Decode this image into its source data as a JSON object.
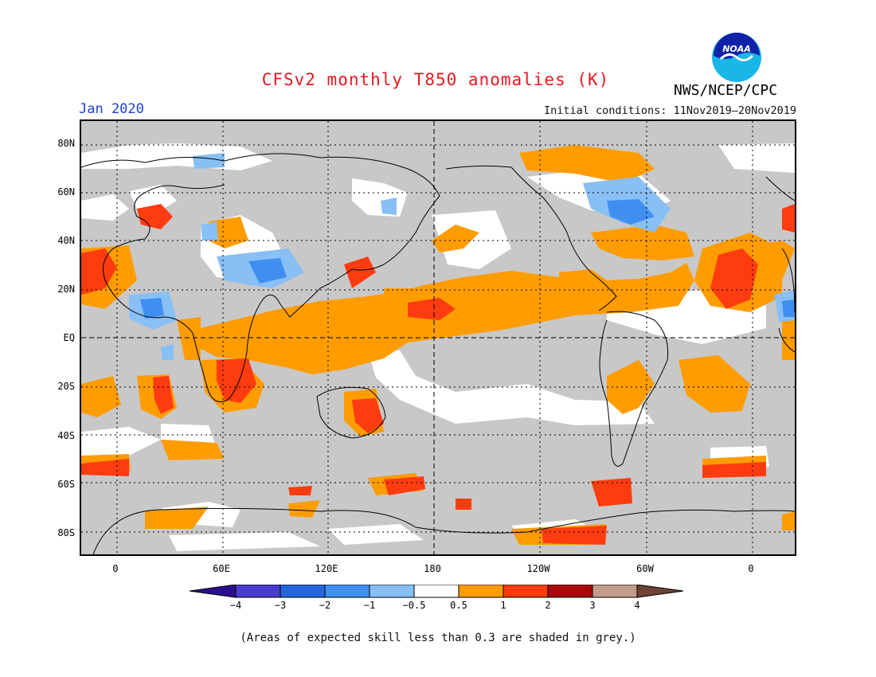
{
  "title": "CFSv2 monthly T850 anomalies (K)",
  "month": "Jan 2020",
  "initial_conditions": "Initial conditions: 11Nov2019–20Nov2019",
  "organization": "NWS/NCEP/CPC",
  "logo_text": "NOAA",
  "footnote": "(Areas of expected skill less than 0.3 are shaded in grey.)",
  "lat_labels": [
    "80N",
    "60N",
    "40N",
    "20N",
    "EQ",
    "20S",
    "40S",
    "60S",
    "80S"
  ],
  "lon_labels": [
    "0",
    "60E",
    "120E",
    "180",
    "120W",
    "60W",
    "0"
  ],
  "colorbar": {
    "ticks": [
      "−4",
      "−3",
      "−2",
      "−1",
      "−0.5",
      "0.5",
      "1",
      "2",
      "3",
      "4"
    ],
    "colors": [
      "#2a0f8f",
      "#4a3bd0",
      "#2266dd",
      "#3f8ff0",
      "#88bff5",
      "#ffffff",
      "#ff9c00",
      "#ff3c0f",
      "#a8080c",
      "#c49c8c",
      "#6e4234"
    ]
  },
  "legend_meaning": {
    "grey": "skill < 0.3",
    "white": "-0.5 to 0.5 K",
    "orange": "0.5 to 1 K",
    "red": "1 to 2 K",
    "light_blue": "-1 to -0.5 K",
    "blue": "-2 to -1 K"
  }
}
